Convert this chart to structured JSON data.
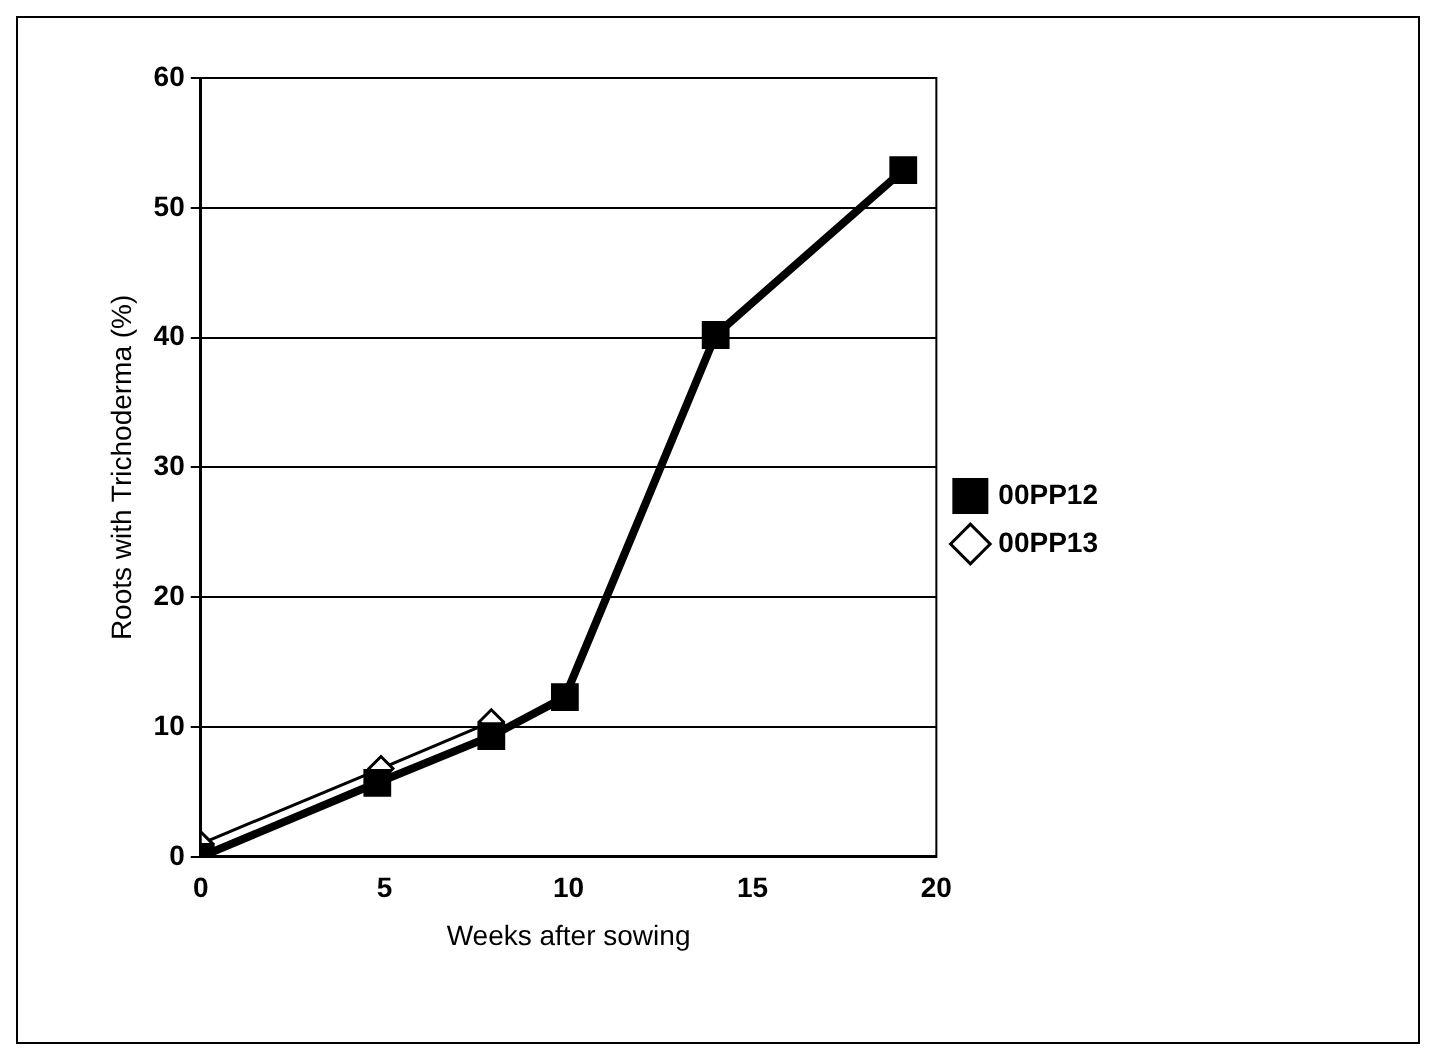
{
  "chart_data": {
    "type": "line",
    "xlabel": "Weeks after sowing",
    "ylabel": "Roots with Trichoderma (%)",
    "xlim": [
      0,
      20
    ],
    "xticks": [
      0,
      5,
      10,
      15,
      20
    ],
    "ylim": [
      0,
      60
    ],
    "yticks": [
      0,
      10,
      20,
      30,
      40,
      50,
      60
    ],
    "grid": "y",
    "legend": "right",
    "series": [
      {
        "name": "00PP12",
        "color": "#000000",
        "marker": "square",
        "x": [
          0,
          4.8,
          7.9,
          9.9,
          14,
          19.1
        ],
        "values": [
          0,
          5.7,
          9.3,
          12.3,
          40.2,
          52.9
        ]
      },
      {
        "name": "00PP13",
        "color": "#ffffff",
        "marker": "diamond",
        "x": [
          0,
          4.9,
          7.9
        ],
        "values": [
          1,
          6.8,
          10.4
        ]
      }
    ]
  }
}
